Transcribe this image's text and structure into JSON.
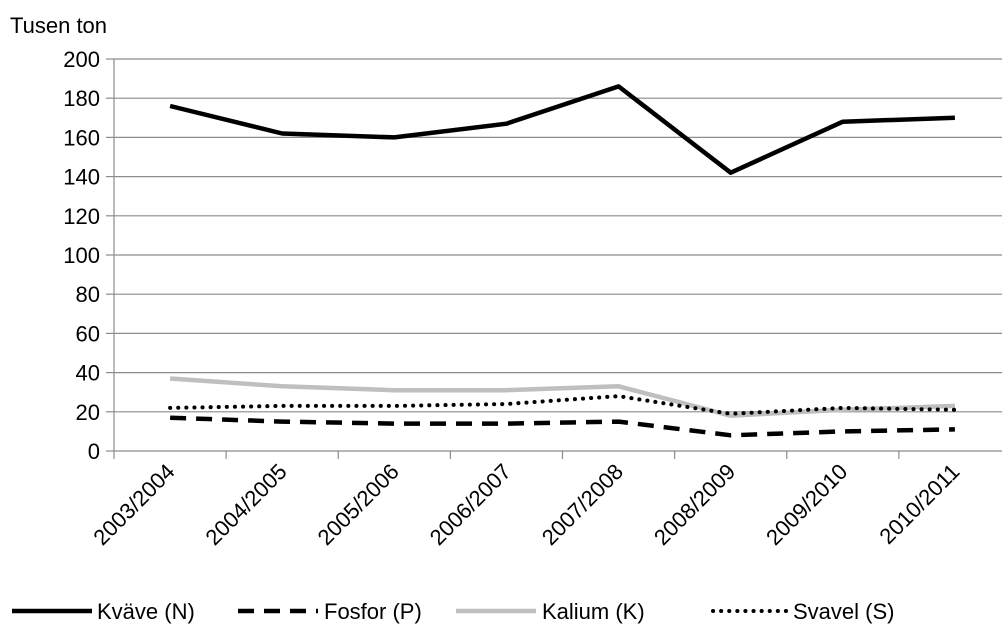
{
  "chart_data": {
    "type": "line",
    "title": "",
    "ylabel": "Tusen ton",
    "xlabel": "",
    "ylim": [
      0,
      200
    ],
    "yticks": [
      0,
      20,
      40,
      60,
      80,
      100,
      120,
      140,
      160,
      180,
      200
    ],
    "categories": [
      "2003/2004",
      "2004/2005",
      "2005/2006",
      "2006/2007",
      "2007/2008",
      "2008/2009",
      "2009/2010",
      "2010/2011"
    ],
    "grid": true,
    "legend_position": "bottom",
    "series": [
      {
        "name": "Kväve (N)",
        "values": [
          176,
          162,
          160,
          167,
          186,
          142,
          168,
          170
        ],
        "color": "#000000",
        "style": "solid"
      },
      {
        "name": "Fosfor (P)",
        "values": [
          17,
          15,
          14,
          14,
          15,
          8,
          10,
          11
        ],
        "color": "#000000",
        "style": "dashed"
      },
      {
        "name": "Kalium (K)",
        "values": [
          37,
          33,
          31,
          31,
          33,
          18,
          21,
          23
        ],
        "color": "#bfbfbf",
        "style": "solid"
      },
      {
        "name": "Svavel (S)",
        "values": [
          22,
          23,
          23,
          24,
          28,
          19,
          22,
          21
        ],
        "color": "#000000",
        "style": "dotted"
      }
    ]
  }
}
